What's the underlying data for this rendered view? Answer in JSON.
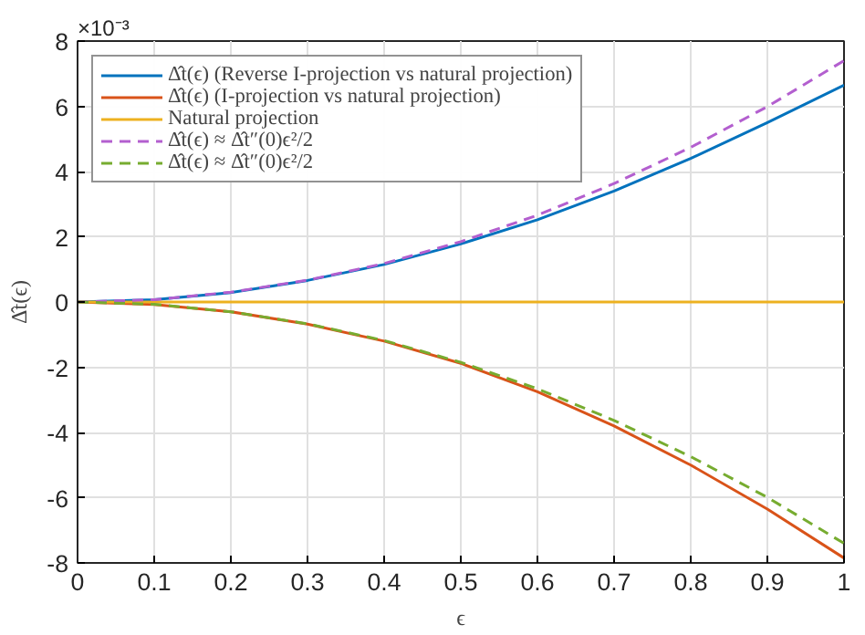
{
  "chart_data": {
    "type": "line",
    "xlabel": "ϵ",
    "ylabel": "Δ̂t(ϵ)",
    "annotations": [
      "×10⁻³"
    ],
    "x": [
      0,
      0.1,
      0.2,
      0.3,
      0.4,
      0.5,
      0.6,
      0.7,
      0.8,
      0.9,
      1
    ],
    "series": [
      {
        "name": "Δ̂t(ϵ) (Reverse I-projection vs natural projection)",
        "color": "#0072bd",
        "values": [
          0,
          0.07,
          0.29,
          0.66,
          1.15,
          1.78,
          2.52,
          3.4,
          4.4,
          5.5,
          6.65
        ]
      },
      {
        "name": "Δ̂t(ϵ) (I-projection vs natural projection)",
        "color": "#d95319",
        "values": [
          0,
          -0.08,
          -0.3,
          -0.68,
          -1.2,
          -1.88,
          -2.75,
          -3.8,
          -5.0,
          -6.35,
          -7.85
        ]
      },
      {
        "name": "Natural projection",
        "color": "#edb120",
        "values": [
          0,
          0,
          0,
          0,
          0,
          0,
          0,
          0,
          0,
          0,
          0
        ]
      },
      {
        "name": "Δ̂t(ϵ) ≈ Δ̂t″(0)ϵ²/2",
        "color": "#b35fcf",
        "line_style": "dashed",
        "values": [
          0,
          0.07,
          0.3,
          0.67,
          1.18,
          1.85,
          2.66,
          3.63,
          4.74,
          5.99,
          7.4
        ]
      },
      {
        "name": "Δ̂t(ϵ) ≈ Δ̂t″(0)ϵ²/2",
        "color": "#77ac30",
        "line_style": "dashed",
        "values": [
          0,
          -0.07,
          -0.3,
          -0.67,
          -1.18,
          -1.85,
          -2.66,
          -3.63,
          -4.74,
          -5.99,
          -7.4
        ]
      }
    ],
    "xlim": [
      0,
      1
    ],
    "ylim": [
      -8,
      8
    ],
    "xticks": [
      0,
      0.1,
      0.2,
      0.3,
      0.4,
      0.5,
      0.6,
      0.7,
      0.8,
      0.9,
      1
    ],
    "yticks": [
      -8,
      -6,
      -4,
      -2,
      0,
      2,
      4,
      6,
      8
    ],
    "grid": true,
    "legend": "top left",
    "line_style": "solid"
  }
}
